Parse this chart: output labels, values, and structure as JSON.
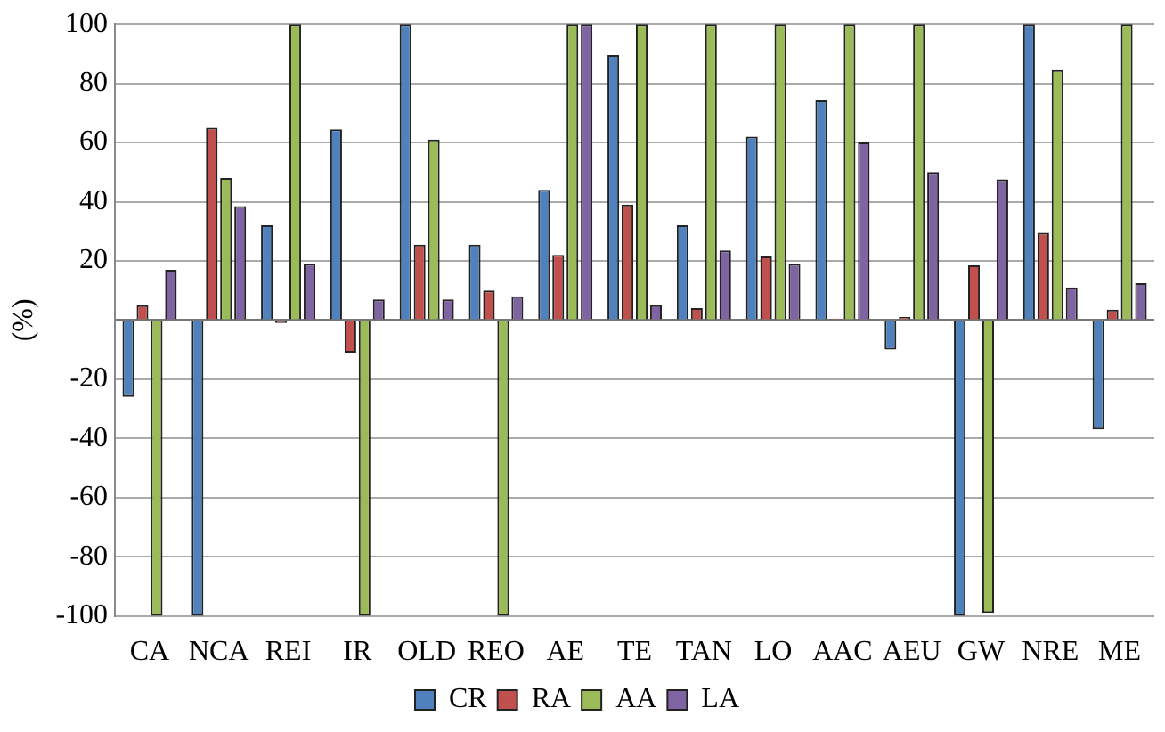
{
  "chart_data": {
    "type": "bar",
    "ylabel": "(%)",
    "categories": [
      "CA",
      "NCA",
      "REI",
      "IR",
      "OLD",
      "REO",
      "AE",
      "TE",
      "TAN",
      "LO",
      "AAC",
      "AEU",
      "GW",
      "NRE",
      "ME"
    ],
    "series": [
      {
        "name": "CR",
        "color": "#4f81bd",
        "values": [
          -26,
          -100,
          32,
          64.5,
          100,
          25.5,
          44,
          89.5,
          32,
          62,
          74.5,
          -10,
          -100,
          100,
          -37
        ]
      },
      {
        "name": "RA",
        "color": "#c0504d",
        "values": [
          5,
          65,
          -1,
          -11,
          25.5,
          10,
          22,
          39,
          4,
          21.5,
          0.5,
          1,
          18.5,
          29.5,
          3.5
        ]
      },
      {
        "name": "AA",
        "color": "#9bbb59",
        "values": [
          -100,
          48,
          100,
          -100,
          61,
          -100,
          100,
          100,
          100,
          100,
          100,
          100,
          -99,
          84.5,
          100
        ]
      },
      {
        "name": "LA",
        "color": "#8064a2",
        "values": [
          17,
          38.5,
          19,
          7,
          7,
          8,
          100,
          5,
          23.5,
          19,
          60,
          50,
          47.5,
          11,
          12.5
        ]
      }
    ],
    "ylim": [
      -100,
      100
    ],
    "yticks": [
      -100,
      -80,
      -60,
      -40,
      -20,
      {
        "value": 0,
        "label": null
      },
      20,
      40,
      60,
      80,
      100
    ],
    "grid": "y",
    "legend": "bottom"
  }
}
